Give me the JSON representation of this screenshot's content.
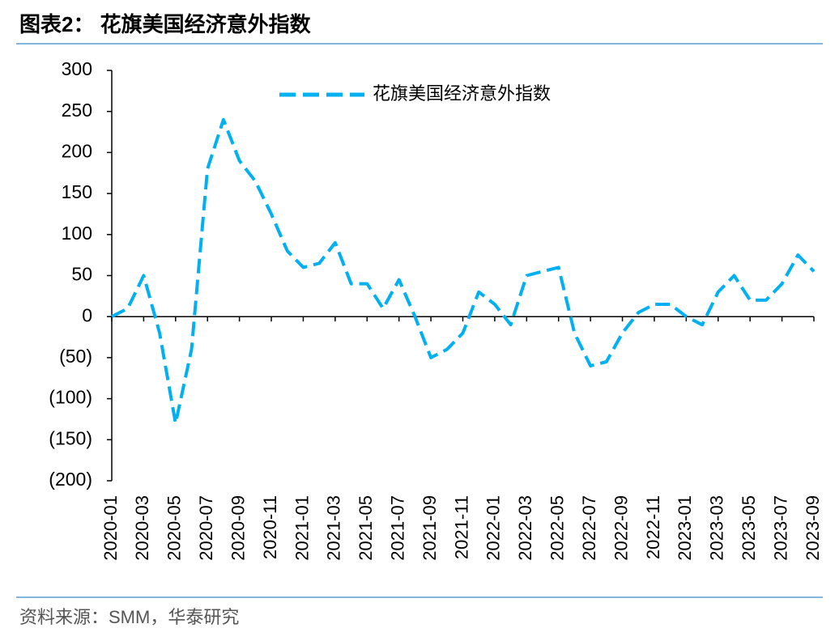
{
  "chart_data": {
    "type": "line",
    "title": "图表2：  花旗美国经济意外指数",
    "source": "资料来源：SMM，华泰研究",
    "categories": [
      "2020-01",
      null,
      "2020-03",
      null,
      "2020-05",
      null,
      "2020-07",
      null,
      "2020-09",
      null,
      "2020-11",
      null,
      "2021-01",
      null,
      "2021-03",
      null,
      "2021-05",
      null,
      "2021-07",
      null,
      "2021-09",
      null,
      "2021-11",
      null,
      "2022-01",
      null,
      "2022-03",
      null,
      "2022-05",
      null,
      "2022-07",
      null,
      "2022-09",
      null,
      "2022-11",
      null,
      "2023-01",
      null,
      "2023-03",
      null,
      "2023-05",
      null,
      "2023-07",
      null,
      "2023-09"
    ],
    "series": [
      {
        "name": "花旗美国经济意外指数",
        "color": "#00b0f0",
        "values": [
          0,
          10,
          50,
          -20,
          -130,
          -40,
          180,
          240,
          190,
          165,
          125,
          80,
          60,
          65,
          90,
          40,
          40,
          10,
          45,
          0,
          -50,
          -40,
          -20,
          30,
          15,
          -10,
          50,
          55,
          60,
          -20,
          -60,
          -55,
          -20,
          5,
          15,
          15,
          0,
          -10,
          30,
          50,
          20,
          20,
          40,
          75,
          55
        ]
      }
    ],
    "ylim": [
      -200,
      300
    ],
    "yticks": [
      {
        "value": -200,
        "label": "(200)"
      },
      {
        "value": -150,
        "label": "(150)"
      },
      {
        "value": -100,
        "label": "(100)"
      },
      {
        "value": -50,
        "label": "(50)"
      },
      0,
      50,
      100,
      150,
      200,
      250,
      300
    ],
    "legend": "top"
  }
}
